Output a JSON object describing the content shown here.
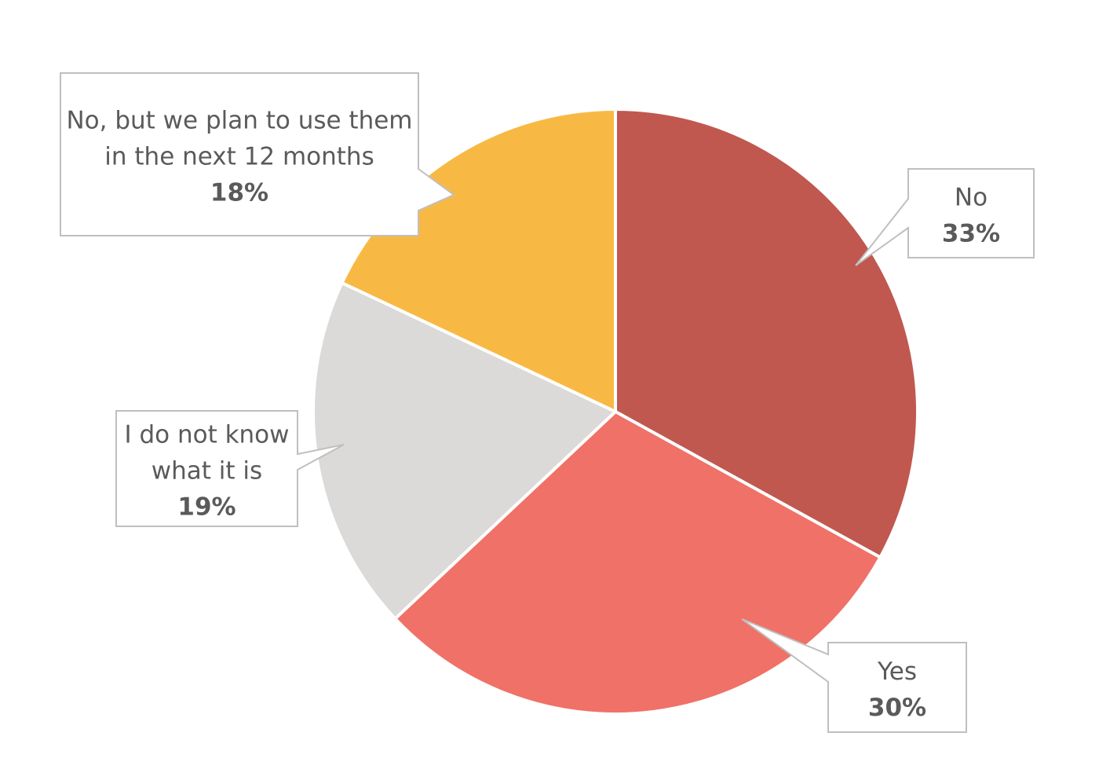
{
  "chart_data": {
    "type": "pie",
    "categories": [
      "No",
      "Yes",
      "I do not know what it is",
      "No, but we plan to use them in the next 12 months"
    ],
    "values": [
      33,
      30,
      19,
      18
    ],
    "value_labels": [
      "33%",
      "30%",
      "19%",
      "18%"
    ],
    "label_lines": [
      [
        "No"
      ],
      [
        "Yes"
      ],
      [
        "I do not know",
        "what it is"
      ],
      [
        "No, but we plan to use them",
        "in the next 12 months"
      ]
    ],
    "colors": [
      "#C0584F",
      "#F07167",
      "#DBDAD9",
      "#F8B944"
    ],
    "start": "12 o'clock",
    "direction": "clockwise",
    "legend": "none",
    "title": ""
  }
}
